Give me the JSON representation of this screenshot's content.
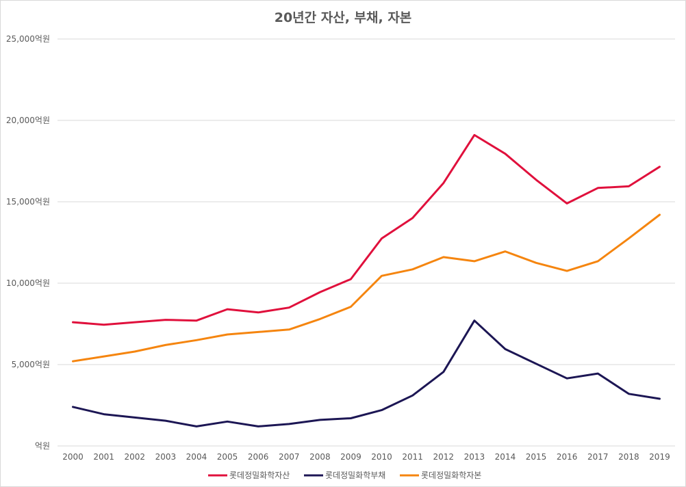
{
  "chart_data": {
    "type": "line",
    "title": "20년간 자산, 부채, 자본",
    "categories": [
      "2000",
      "2001",
      "2002",
      "2003",
      "2004",
      "2005",
      "2006",
      "2007",
      "2008",
      "2009",
      "2010",
      "2011",
      "2012",
      "2013",
      "2014",
      "2015",
      "2016",
      "2017",
      "2018",
      "2019"
    ],
    "y_unit": "억원",
    "ylim": [
      0,
      25000
    ],
    "yticks": [
      0,
      5000,
      10000,
      15000,
      20000,
      25000
    ],
    "ytick_labels": [
      "억원",
      "5,000억원",
      "10,000억원",
      "15,000억원",
      "20,000억원",
      "25,000억원"
    ],
    "grid": true,
    "legend_position": "bottom",
    "series": [
      {
        "name": "롯데정밀화학자산",
        "color": "#e0103c",
        "values": [
          7600,
          7450,
          7600,
          7750,
          7700,
          8400,
          8200,
          8500,
          9450,
          10250,
          12750,
          14000,
          16150,
          19100,
          17950,
          16350,
          14900,
          15850,
          15950,
          17150
        ]
      },
      {
        "name": "롯데정밀화학부채",
        "color": "#1c1654",
        "values": [
          2400,
          1950,
          1750,
          1550,
          1200,
          1500,
          1200,
          1350,
          1600,
          1700,
          2200,
          3100,
          4550,
          7700,
          5950,
          5050,
          4150,
          4450,
          3200,
          2900
        ]
      },
      {
        "name": "롯데정밀화학자본",
        "color": "#f5850f",
        "values": [
          5200,
          5500,
          5800,
          6200,
          6500,
          6850,
          7000,
          7150,
          7800,
          8550,
          10450,
          10850,
          11600,
          11350,
          11950,
          11250,
          10750,
          11350,
          12750,
          14200
        ]
      }
    ]
  }
}
